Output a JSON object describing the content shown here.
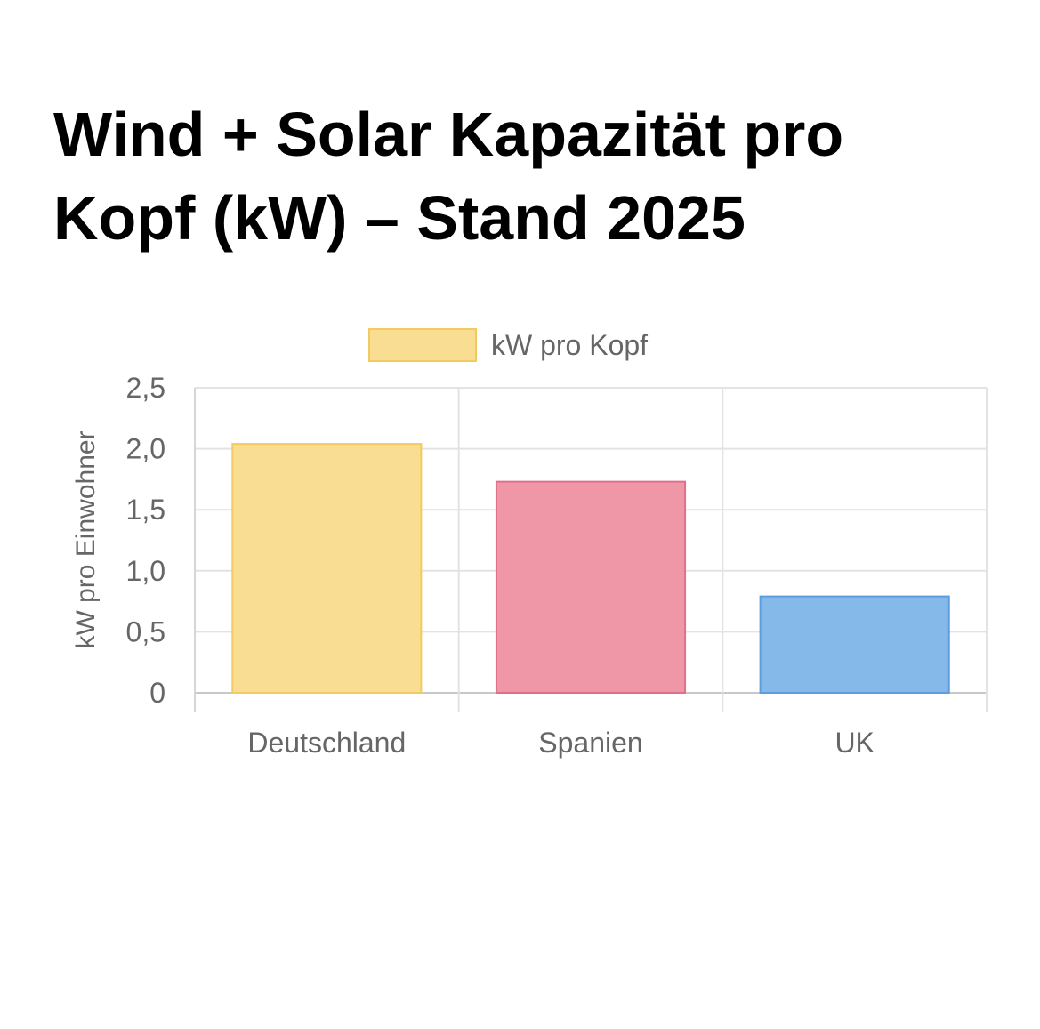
{
  "chart_data": {
    "type": "bar",
    "title_lines": [
      "Wind + Solar Kapazität pro",
      "Kopf (kW) – Stand 2025"
    ],
    "categories": [
      "Deutschland",
      "Spanien",
      "UK"
    ],
    "series": [
      {
        "name": "kW pro Kopf",
        "values": [
          2.04,
          1.73,
          0.79
        ],
        "fill_colors": [
          "#f9dd92",
          "#f097a7",
          "#85b9e9"
        ],
        "border_colors": [
          "#f2cb5e",
          "#e0708a",
          "#5a9edf"
        ]
      }
    ],
    "y_ticks": [
      "0",
      "0,5",
      "1,0",
      "1,5",
      "2,0",
      "2,5"
    ],
    "y_tick_values": [
      0,
      0.5,
      1.0,
      1.5,
      2.0,
      2.5
    ],
    "xlabel": "",
    "ylabel": "kW pro Einwohner",
    "ylim": [
      0,
      2.5
    ],
    "grid": true,
    "legend_position": "top-center"
  }
}
